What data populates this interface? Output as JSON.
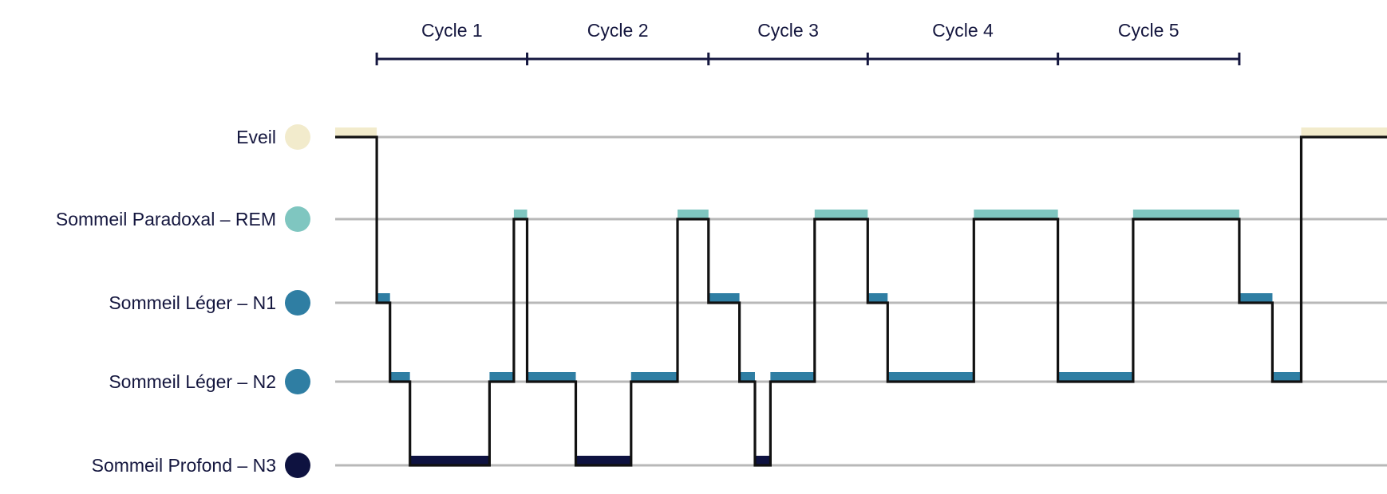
{
  "chart_data": {
    "type": "line",
    "title": "",
    "xlabel": "",
    "ylabel": "",
    "grid": true,
    "stages": [
      {
        "key": "wake",
        "label": "Eveil",
        "color": "#f2ebcc"
      },
      {
        "key": "rem",
        "label": "Sommeil Paradoxal – REM",
        "color": "#7fc6c0"
      },
      {
        "key": "n1",
        "label": "Sommeil Léger – N1",
        "color": "#2f7ea3"
      },
      {
        "key": "n2",
        "label": "Sommeil Léger – N2",
        "color": "#2f7ea3"
      },
      {
        "key": "n3",
        "label": "Sommeil Profond – N3",
        "color": "#0e1240"
      }
    ],
    "cycles": [
      {
        "label": "Cycle 1",
        "start": 0,
        "end": 34
      },
      {
        "label": "Cycle 2",
        "start": 34,
        "end": 75
      },
      {
        "label": "Cycle 3",
        "start": 75,
        "end": 111
      },
      {
        "label": "Cycle 4",
        "start": 111,
        "end": 154
      },
      {
        "label": "Cycle 5",
        "start": 154,
        "end": 195
      }
    ],
    "xlim": [
      -9.4,
      228.4
    ],
    "hypnogram": [
      {
        "stage": "wake",
        "start": -9.4,
        "end": 0
      },
      {
        "stage": "n1",
        "start": 0,
        "end": 3
      },
      {
        "stage": "n2",
        "start": 3,
        "end": 7.5
      },
      {
        "stage": "n3",
        "start": 7.5,
        "end": 25.5
      },
      {
        "stage": "n2",
        "start": 25.5,
        "end": 31
      },
      {
        "stage": "rem",
        "start": 31,
        "end": 34
      },
      {
        "stage": "n2",
        "start": 34,
        "end": 45
      },
      {
        "stage": "n3",
        "start": 45,
        "end": 57.5
      },
      {
        "stage": "n2",
        "start": 57.5,
        "end": 68
      },
      {
        "stage": "rem",
        "start": 68,
        "end": 75
      },
      {
        "stage": "n1",
        "start": 75,
        "end": 82
      },
      {
        "stage": "n2",
        "start": 82,
        "end": 85.5
      },
      {
        "stage": "n3",
        "start": 85.5,
        "end": 89
      },
      {
        "stage": "n2",
        "start": 89,
        "end": 99
      },
      {
        "stage": "rem",
        "start": 99,
        "end": 111
      },
      {
        "stage": "n1",
        "start": 111,
        "end": 115.5
      },
      {
        "stage": "n2",
        "start": 115.5,
        "end": 135
      },
      {
        "stage": "rem",
        "start": 135,
        "end": 154
      },
      {
        "stage": "n2",
        "start": 154,
        "end": 171
      },
      {
        "stage": "rem",
        "start": 171,
        "end": 195
      },
      {
        "stage": "n1",
        "start": 195,
        "end": 202.5
      },
      {
        "stage": "n2",
        "start": 202.5,
        "end": 209
      },
      {
        "stage": "wake",
        "start": 209,
        "end": 228.4
      }
    ]
  }
}
